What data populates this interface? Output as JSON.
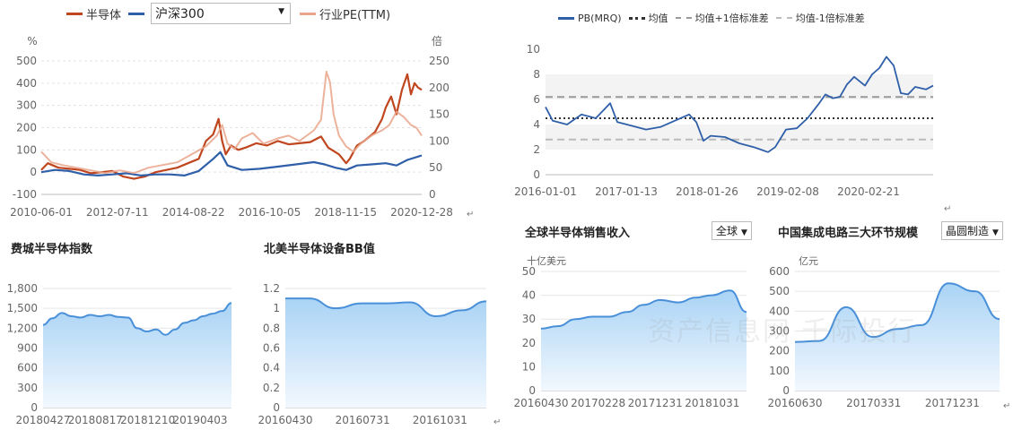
{
  "watermark": "资产信息网 千际投行",
  "paragraph_mark": "↵",
  "chart_data": [
    {
      "id": "c1",
      "type": "line",
      "legend": [
        {
          "name": "半导体",
          "color": "#c0461f"
        },
        {
          "name": "沪深300",
          "color": "#2f5fa8"
        },
        {
          "name": "行业PE(TTM)",
          "color": "#e9a58a"
        }
      ],
      "dropdown_value": "沪深300",
      "ylabel_left": "%",
      "ylabel_right": "倍",
      "ylim_left": [
        -100,
        500
      ],
      "yticks_left": [
        "-100",
        "0",
        "100",
        "200",
        "300",
        "400",
        "500"
      ],
      "ylim_right": [
        0,
        250
      ],
      "yticks_right": [
        "0",
        "50",
        "100",
        "150",
        "200",
        "250"
      ],
      "xticks": [
        "2010-06-01",
        "2012-07-11",
        "2014-08-22",
        "2016-10-05",
        "2018-11-15",
        "2020-12-28"
      ],
      "x_range": [
        2010.42,
        2021.0
      ],
      "series": [
        {
          "name": "半导体",
          "axis": "left",
          "color": "#c0461f",
          "x": [
            2010.42,
            2010.6,
            2010.9,
            2011.2,
            2011.5,
            2011.8,
            2012.1,
            2012.4,
            2012.7,
            2013.0,
            2013.3,
            2013.6,
            2013.9,
            2014.2,
            2014.5,
            2014.8,
            2015.0,
            2015.2,
            2015.35,
            2015.45,
            2015.55,
            2015.7,
            2015.9,
            2016.1,
            2016.4,
            2016.7,
            2017.0,
            2017.3,
            2017.6,
            2017.9,
            2018.2,
            2018.4,
            2018.7,
            2018.9,
            2019.0,
            2019.2,
            2019.4,
            2019.7,
            2019.9,
            2020.0,
            2020.15,
            2020.3,
            2020.45,
            2020.6,
            2020.7,
            2020.8,
            2020.9,
            2021.0
          ],
          "y": [
            10,
            40,
            20,
            15,
            10,
            -5,
            0,
            5,
            -20,
            -30,
            -20,
            0,
            10,
            20,
            40,
            60,
            140,
            170,
            240,
            140,
            80,
            120,
            100,
            110,
            130,
            120,
            140,
            125,
            130,
            135,
            160,
            110,
            80,
            40,
            60,
            120,
            140,
            180,
            240,
            290,
            340,
            260,
            370,
            440,
            350,
            400,
            380,
            370
          ]
        },
        {
          "name": "沪深300",
          "axis": "left",
          "color": "#2f5fa8",
          "x": [
            2010.42,
            2010.8,
            2011.2,
            2011.6,
            2012.0,
            2012.4,
            2012.8,
            2013.2,
            2013.6,
            2014.0,
            2014.4,
            2014.8,
            2015.2,
            2015.4,
            2015.6,
            2016.0,
            2016.5,
            2017.0,
            2017.5,
            2018.0,
            2018.3,
            2018.6,
            2018.9,
            2019.2,
            2019.6,
            2020.0,
            2020.3,
            2020.6,
            2020.9,
            2021.0
          ],
          "y": [
            0,
            10,
            5,
            -10,
            -15,
            -10,
            -5,
            -15,
            -10,
            -10,
            -15,
            5,
            60,
            90,
            30,
            10,
            15,
            25,
            35,
            45,
            35,
            20,
            10,
            30,
            35,
            40,
            30,
            55,
            70,
            75
          ]
        },
        {
          "name": "行业PE(TTM)",
          "axis": "right",
          "color": "#e9a58a",
          "x": [
            2010.42,
            2010.7,
            2011.0,
            2011.4,
            2011.8,
            2012.2,
            2012.6,
            2013.0,
            2013.4,
            2013.8,
            2014.2,
            2014.6,
            2015.0,
            2015.3,
            2015.45,
            2015.6,
            2015.8,
            2016.0,
            2016.3,
            2016.6,
            2017.0,
            2017.3,
            2017.6,
            2018.0,
            2018.2,
            2018.35,
            2018.45,
            2018.55,
            2018.7,
            2018.9,
            2019.1,
            2019.3,
            2019.6,
            2019.9,
            2020.1,
            2020.3,
            2020.5,
            2020.7,
            2020.85,
            2021.0
          ],
          "y": [
            80,
            60,
            55,
            50,
            45,
            40,
            45,
            40,
            50,
            55,
            60,
            75,
            90,
            110,
            130,
            95,
            85,
            105,
            115,
            95,
            105,
            110,
            100,
            120,
            140,
            230,
            210,
            150,
            110,
            90,
            80,
            95,
            110,
            120,
            130,
            155,
            145,
            130,
            125,
            110
          ]
        }
      ]
    },
    {
      "id": "c2",
      "type": "line",
      "legend": [
        {
          "name": "PB(MRQ)",
          "style": "solid",
          "color": "#2f5fa8"
        },
        {
          "name": "均值",
          "style": "dotted",
          "color": "#333333"
        },
        {
          "name": "均值+1倍标准差",
          "style": "dashed",
          "color": "#999999"
        },
        {
          "name": "均值-1倍标准差",
          "style": "dashed",
          "color": "#bbbbbb"
        }
      ],
      "ylim": [
        0,
        10
      ],
      "yticks": [
        "0",
        "2",
        "4",
        "6",
        "8",
        "10"
      ],
      "xticks": [
        "2016-01-01",
        "2017-01-13",
        "2018-01-26",
        "2019-02-08",
        "2020-02-21"
      ],
      "x_range": [
        2016.0,
        2021.4
      ],
      "reference_lines": [
        {
          "name": "均值",
          "value": 4.5
        },
        {
          "name": "均值+1倍标准差",
          "value": 6.2
        },
        {
          "name": "均值-1倍标准差",
          "value": 2.8
        }
      ],
      "series": [
        {
          "name": "PB(MRQ)",
          "x": [
            2016.0,
            2016.1,
            2016.3,
            2016.5,
            2016.7,
            2016.9,
            2017.0,
            2017.2,
            2017.4,
            2017.6,
            2017.8,
            2018.0,
            2018.1,
            2018.2,
            2018.3,
            2018.5,
            2018.7,
            2018.9,
            2019.0,
            2019.1,
            2019.2,
            2019.35,
            2019.5,
            2019.65,
            2019.8,
            2019.9,
            2020.0,
            2020.1,
            2020.2,
            2020.3,
            2020.45,
            2020.55,
            2020.65,
            2020.75,
            2020.85,
            2020.95,
            2021.05,
            2021.15,
            2021.3,
            2021.4
          ],
          "y": [
            5.4,
            4.3,
            4.0,
            4.8,
            4.5,
            5.7,
            4.2,
            3.9,
            3.6,
            3.8,
            4.3,
            4.8,
            4.2,
            2.7,
            3.1,
            3.0,
            2.5,
            2.2,
            2.0,
            1.8,
            2.2,
            3.6,
            3.7,
            4.5,
            5.6,
            6.4,
            6.1,
            6.2,
            7.2,
            7.8,
            7.1,
            8.0,
            8.5,
            9.4,
            8.7,
            6.5,
            6.4,
            7.0,
            6.8,
            7.1
          ]
        }
      ]
    },
    {
      "id": "c3",
      "type": "area",
      "title": "费城半导体指数",
      "ylim": [
        0,
        1800
      ],
      "yticks": [
        "0",
        "300",
        "600",
        "900",
        "1,200",
        "1,500",
        "1,800"
      ],
      "xticks": [
        "20180427",
        "20180817",
        "20181210",
        "20190403"
      ],
      "x": [
        0,
        0.05,
        0.1,
        0.15,
        0.2,
        0.25,
        0.3,
        0.35,
        0.4,
        0.45,
        0.5,
        0.55,
        0.6,
        0.65,
        0.7,
        0.75,
        0.8,
        0.85,
        0.9,
        0.95,
        1.0
      ],
      "values": [
        1250,
        1350,
        1430,
        1380,
        1360,
        1400,
        1380,
        1400,
        1370,
        1360,
        1200,
        1150,
        1180,
        1100,
        1180,
        1280,
        1320,
        1380,
        1420,
        1460,
        1580
      ]
    },
    {
      "id": "c4",
      "type": "area",
      "title": "北美半导体设备BB值",
      "ylim": [
        0,
        1.2
      ],
      "yticks": [
        "0",
        "0.2",
        "0.4",
        "0.6",
        "0.8",
        "1",
        "1.2"
      ],
      "xticks": [
        "20160430",
        "20160731",
        "20161031"
      ],
      "x": [
        0,
        0.12,
        0.25,
        0.38,
        0.5,
        0.62,
        0.75,
        0.88,
        1.0
      ],
      "values": [
        1.1,
        1.1,
        1.0,
        1.05,
        1.05,
        1.06,
        0.92,
        0.98,
        1.07
      ]
    },
    {
      "id": "c5",
      "type": "area",
      "title": "全球半导体销售收入",
      "dropdown_value": "全球",
      "ylabel": "十亿美元",
      "ylim": [
        0,
        50
      ],
      "yticks": [
        "0",
        "10",
        "20",
        "30",
        "40",
        "50"
      ],
      "xticks": [
        "20160430",
        "20170228",
        "20171231",
        "20181031"
      ],
      "x": [
        0,
        0.08,
        0.17,
        0.25,
        0.33,
        0.42,
        0.5,
        0.58,
        0.67,
        0.75,
        0.83,
        0.92,
        1.0
      ],
      "values": [
        26,
        27,
        30,
        31,
        31,
        33,
        36,
        38,
        37,
        39,
        40,
        42,
        33
      ]
    },
    {
      "id": "c6",
      "type": "area",
      "title": "中国集成电路三大环节规模",
      "dropdown_value": "晶圆制造",
      "ylabel": "亿元",
      "ylim": [
        0,
        600
      ],
      "yticks": [
        "0",
        "100",
        "200",
        "300",
        "400",
        "500",
        "600"
      ],
      "xticks": [
        "20160630",
        "20170331",
        "20171231"
      ],
      "x": [
        0,
        0.12,
        0.25,
        0.38,
        0.5,
        0.62,
        0.75,
        0.88,
        1.0
      ],
      "values": [
        245,
        250,
        420,
        270,
        310,
        330,
        540,
        500,
        360
      ]
    }
  ]
}
